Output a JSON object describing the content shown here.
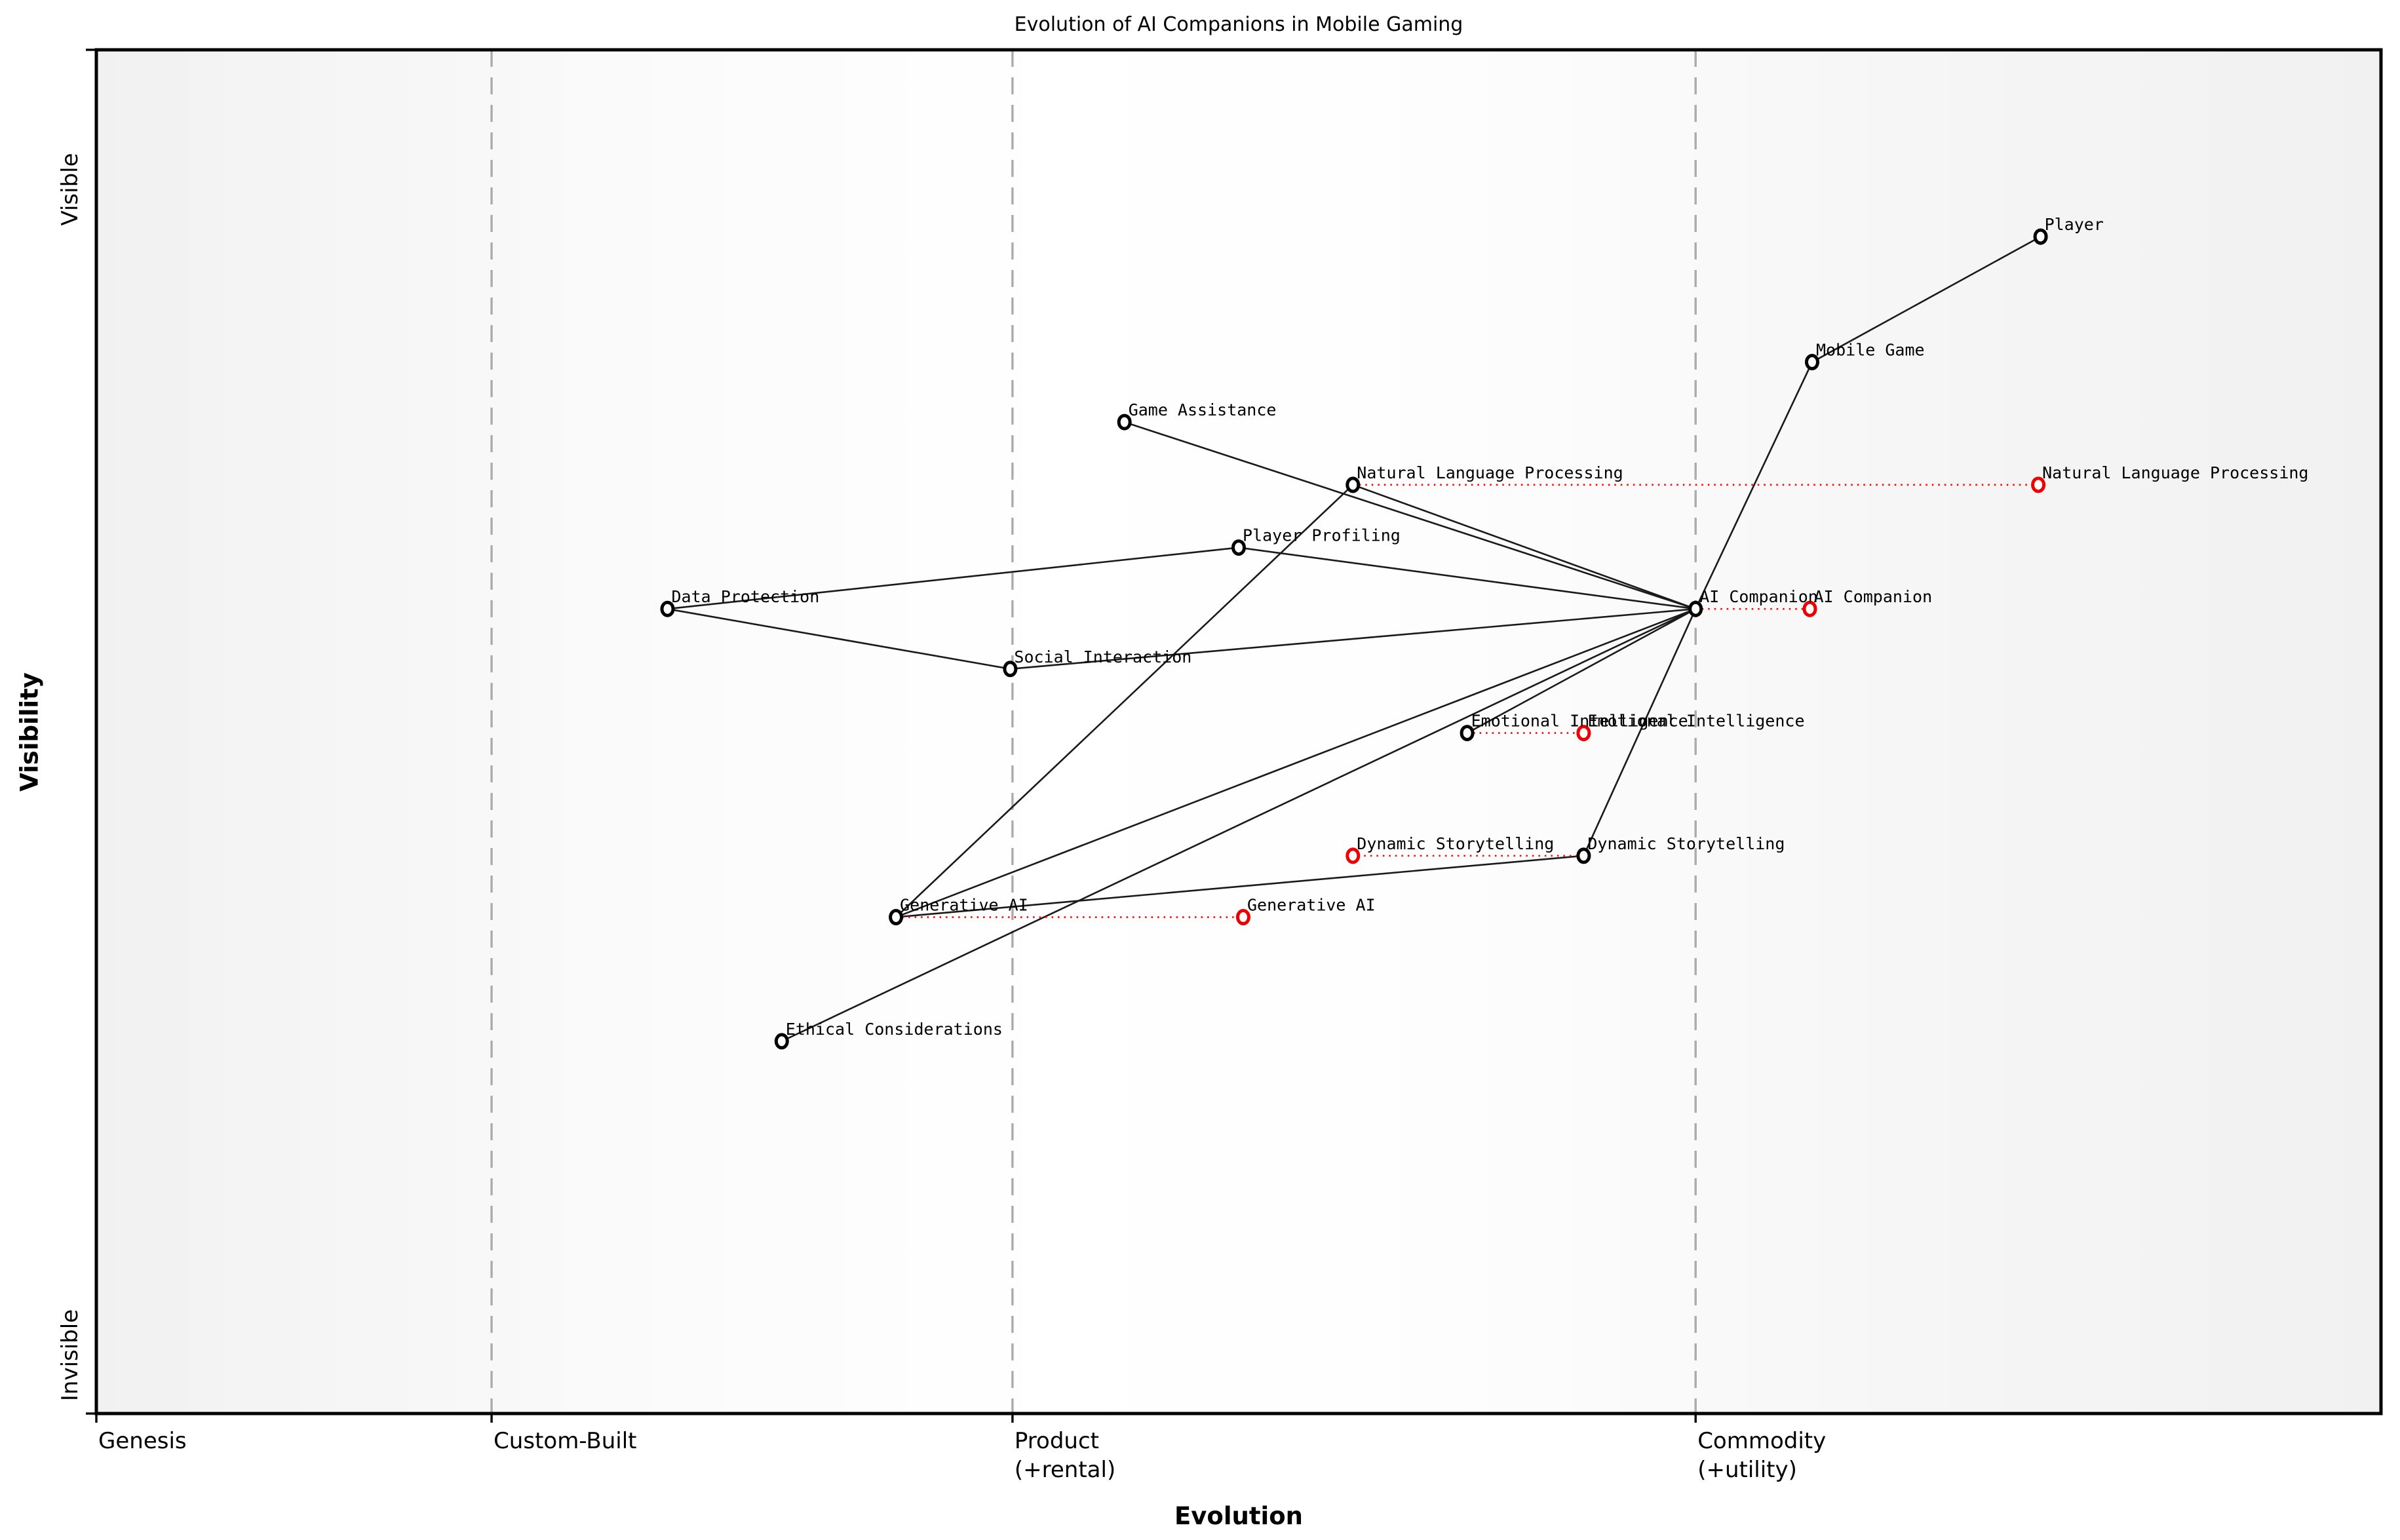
{
  "title": "Evolution of AI Companions in Mobile Gaming",
  "axes": {
    "x_title": "Evolution",
    "y_title": "Visibility",
    "y_ticks": [
      {
        "label": "Visible",
        "frac": 1
      },
      {
        "label": "Invisible",
        "frac": 0
      }
    ],
    "x_stages": [
      {
        "lines": [
          "Genesis"
        ],
        "frac": 0.0
      },
      {
        "lines": [
          "Custom-Built"
        ],
        "frac": 0.173
      },
      {
        "lines": [
          "Product",
          "(+rental)"
        ],
        "frac": 0.401
      },
      {
        "lines": [
          "Commodity",
          "(+utility)"
        ],
        "frac": 0.7
      }
    ]
  },
  "colors": {
    "node_stroke": "#000000",
    "evolve_stroke": "#ee0000",
    "evolve_dots": "#ff0000",
    "edge": "#1a1a1a",
    "gridline": "#ababab",
    "plot_bg_edge": "#f1f1f1",
    "plot_bg_center": "#ffffff"
  },
  "chart_data": {
    "type": "scatter",
    "subtype": "wardley-map",
    "title": "Evolution of AI Companions in Mobile Gaming",
    "xlabel": "Evolution",
    "ylabel": "Visibility",
    "xlim": [
      0,
      1
    ],
    "ylim": [
      0,
      1
    ],
    "grid": "vertical-dashed-at-stage-boundaries",
    "stage_boundaries": [
      0.173,
      0.401,
      0.7
    ],
    "nodes": [
      {
        "name": "Player",
        "evolution": 0.851,
        "visibility": 0.863
      },
      {
        "name": "Mobile Game",
        "evolution": 0.751,
        "visibility": 0.771
      },
      {
        "name": "Game Assistance",
        "evolution": 0.45,
        "visibility": 0.727
      },
      {
        "name": "Natural Language Processing",
        "evolution": 0.55,
        "visibility": 0.681,
        "evolve_to": 0.85
      },
      {
        "name": "Player Profiling",
        "evolution": 0.5,
        "visibility": 0.635
      },
      {
        "name": "Data Protection",
        "evolution": 0.25,
        "visibility": 0.59
      },
      {
        "name": "AI Companion",
        "evolution": 0.7,
        "visibility": 0.59,
        "evolve_to": 0.75
      },
      {
        "name": "Social Interaction",
        "evolution": 0.4,
        "visibility": 0.546
      },
      {
        "name": "Emotional Intelligence",
        "evolution": 0.6,
        "visibility": 0.499,
        "evolve_to": 0.651
      },
      {
        "name": "Dynamic Storytelling",
        "evolution": 0.651,
        "visibility": 0.409,
        "evolve_to": 0.55
      },
      {
        "name": "Generative AI",
        "evolution": 0.35,
        "visibility": 0.364,
        "evolve_to": 0.502
      },
      {
        "name": "Ethical Considerations",
        "evolution": 0.3,
        "visibility": 0.273
      }
    ],
    "edges": [
      [
        "Player",
        "Mobile Game"
      ],
      [
        "Mobile Game",
        "AI Companion"
      ],
      [
        "Game Assistance",
        "AI Companion"
      ],
      [
        "Natural Language Processing",
        "AI Companion"
      ],
      [
        "Player Profiling",
        "AI Companion"
      ],
      [
        "Social Interaction",
        "AI Companion"
      ],
      [
        "Emotional Intelligence",
        "AI Companion"
      ],
      [
        "Dynamic Storytelling",
        "AI Companion"
      ],
      [
        "Generative AI",
        "AI Companion"
      ],
      [
        "Ethical Considerations",
        "AI Companion"
      ],
      [
        "Data Protection",
        "Player Profiling"
      ],
      [
        "Data Protection",
        "Social Interaction"
      ],
      [
        "Generative AI",
        "Natural Language Processing"
      ],
      [
        "Generative AI",
        "Dynamic Storytelling"
      ]
    ]
  }
}
